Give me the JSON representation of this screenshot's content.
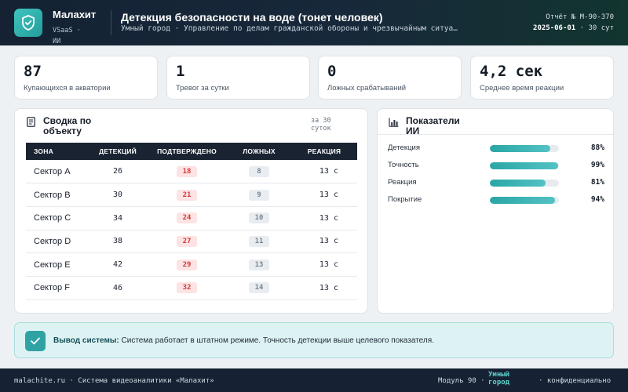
{
  "header": {
    "brand_name": "Малахит",
    "brand_sub": "VSaaS · ИИ",
    "title": "Детекция безопасности на воде (тонет человек)",
    "subtitle": "Умный город · Управление по делам гражданской обороны и чрезвычайным ситуациям",
    "report_no": "Отчёт № М-90-370",
    "report_date": "2025-06-01",
    "report_period": "· 30 сут"
  },
  "kpis": [
    {
      "value": "87",
      "label": "Купающихся в акватории"
    },
    {
      "value": "1",
      "label": "Тревог за сутки"
    },
    {
      "value": "0",
      "label": "Ложных срабатываний"
    },
    {
      "value": "4,2 сек",
      "label": "Среднее время реакции"
    }
  ],
  "summary": {
    "title": "Сводка по объекту",
    "period": "за 30 суток",
    "columns": [
      "ЗОНА",
      "ДЕТЕКЦИЙ",
      "ПОДТВЕРЖДЕНО",
      "ЛОЖНЫХ",
      "РЕАКЦИЯ"
    ],
    "rows": [
      {
        "zone": "Сектор A",
        "detections": "26",
        "confirmed": "18",
        "false": "8",
        "reaction": "13 с"
      },
      {
        "zone": "Сектор B",
        "detections": "30",
        "confirmed": "21",
        "false": "9",
        "reaction": "13 с"
      },
      {
        "zone": "Сектор C",
        "detections": "34",
        "confirmed": "24",
        "false": "10",
        "reaction": "13 с"
      },
      {
        "zone": "Сектор D",
        "detections": "38",
        "confirmed": "27",
        "false": "11",
        "reaction": "13 с"
      },
      {
        "zone": "Сектор E",
        "detections": "42",
        "confirmed": "29",
        "false": "13",
        "reaction": "13 с"
      },
      {
        "zone": "Сектор F",
        "detections": "46",
        "confirmed": "32",
        "false": "14",
        "reaction": "13 с"
      }
    ]
  },
  "ai": {
    "title": "Показатели ИИ",
    "metrics": [
      {
        "label": "Детекция",
        "value": "88%",
        "percent": 88
      },
      {
        "label": "Точность",
        "value": "99%",
        "percent": 99
      },
      {
        "label": "Реакция",
        "value": "81%",
        "percent": 81
      },
      {
        "label": "Покрытие",
        "value": "94%",
        "percent": 94
      }
    ]
  },
  "conclusion": {
    "label": "Вывод системы:",
    "text": "Система работает в штатном режиме. Точность детекции выше целевого показателя."
  },
  "footer": {
    "left": "malachite.ru · Система видеоаналитики «Малахит»",
    "module": "Модуль 90 ·",
    "city": "Умный город",
    "conf": "· конфиденциально"
  },
  "colors": {
    "accent": "#2fa3a3",
    "header_bg": "#142233",
    "danger": "#d23b3b"
  },
  "icons": [
    "shield-check-icon",
    "document-icon",
    "bar-chart-icon",
    "check-icon"
  ]
}
